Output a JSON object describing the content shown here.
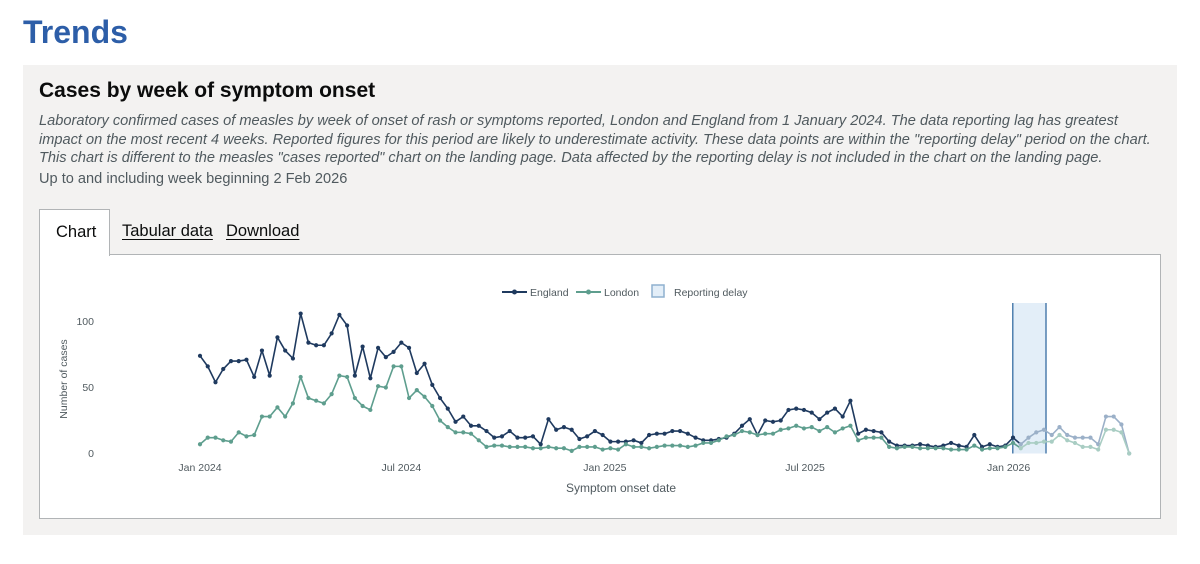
{
  "page": {
    "title": "Trends"
  },
  "card": {
    "title": "Cases by week of symptom onset",
    "description": "Laboratory confirmed cases of measles by week of onset of rash or symptoms reported, London and England from 1 January 2024. The data reporting lag has greatest impact on the most recent 4 weeks. Reported figures for this period are likely to underestimate activity. These data points are within the \"reporting delay\" period on the chart. This chart is different to the measles \"cases reported\" chart on the landing page. Data affected by the reporting delay is not included in the chart on the landing page.",
    "updated": "Up to and including week beginning 2 Feb 2026"
  },
  "tabs": [
    {
      "label": "Chart",
      "active": true
    },
    {
      "label": "Tabular data",
      "active": false
    },
    {
      "label": "Download",
      "active": false
    }
  ],
  "chart_data": {
    "type": "line",
    "xlabel": "Symptom onset date",
    "ylabel": "Number of cases",
    "x_start": "2024-01-01",
    "x_step_days": 7,
    "x_ticks": [
      "Jan 2024",
      "Jul 2024",
      "Jan 2025",
      "Jul 2025",
      "Jan 2026"
    ],
    "y_ticks": [
      0,
      50,
      100
    ],
    "ylim": [
      0,
      115
    ],
    "grid": false,
    "legend_position": "top-center",
    "legend": [
      "England",
      "London",
      "Reporting delay"
    ],
    "reporting_delay": {
      "from": "2026-01-12",
      "to": "2026-02-02"
    },
    "series": [
      {
        "name": "England",
        "color": "#1f3a5f",
        "values": [
          74,
          66,
          54,
          64,
          70,
          70,
          71,
          58,
          78,
          59,
          88,
          78,
          72,
          106,
          84,
          82,
          82,
          91,
          105,
          97,
          59,
          81,
          57,
          80,
          73,
          77,
          84,
          80,
          61,
          68,
          52,
          42,
          34,
          24,
          28,
          21,
          21,
          17,
          12,
          13,
          17,
          12,
          12,
          13,
          7,
          26,
          18,
          20,
          18,
          11,
          13,
          17,
          14,
          9,
          9,
          9,
          10,
          8,
          14,
          15,
          15,
          17,
          17,
          15,
          12,
          10,
          10,
          11,
          12,
          15,
          21,
          26,
          14,
          25,
          24,
          25,
          33,
          34,
          33,
          31,
          26,
          31,
          34,
          28,
          40,
          15,
          18,
          17,
          16,
          9,
          6,
          6,
          6,
          7,
          6,
          5,
          6,
          8,
          6,
          5,
          14,
          5,
          7,
          5,
          6,
          12,
          7,
          12,
          16,
          18,
          14,
          20,
          14,
          12,
          12,
          12,
          7,
          28,
          28,
          22,
          0
        ]
      },
      {
        "name": "London",
        "color": "#5e9e8e",
        "values": [
          7,
          12,
          12,
          10,
          9,
          16,
          13,
          14,
          28,
          28,
          35,
          28,
          38,
          58,
          42,
          40,
          38,
          45,
          59,
          58,
          42,
          36,
          33,
          51,
          50,
          66,
          66,
          42,
          48,
          43,
          36,
          25,
          20,
          16,
          16,
          15,
          10,
          5,
          6,
          6,
          5,
          5,
          5,
          4,
          4,
          5,
          4,
          4,
          2,
          5,
          5,
          5,
          3,
          4,
          3,
          7,
          5,
          5,
          4,
          5,
          6,
          6,
          6,
          5,
          6,
          8,
          8,
          10,
          13,
          14,
          17,
          16,
          14,
          15,
          15,
          18,
          19,
          21,
          19,
          20,
          17,
          20,
          16,
          19,
          21,
          10,
          12,
          12,
          12,
          5,
          4,
          5,
          5,
          4,
          4,
          4,
          4,
          3,
          3,
          3,
          6,
          3,
          4,
          4,
          5,
          8,
          4,
          8,
          8,
          9,
          9,
          14,
          10,
          8,
          5,
          5,
          3,
          18,
          18,
          16,
          0
        ]
      }
    ]
  }
}
